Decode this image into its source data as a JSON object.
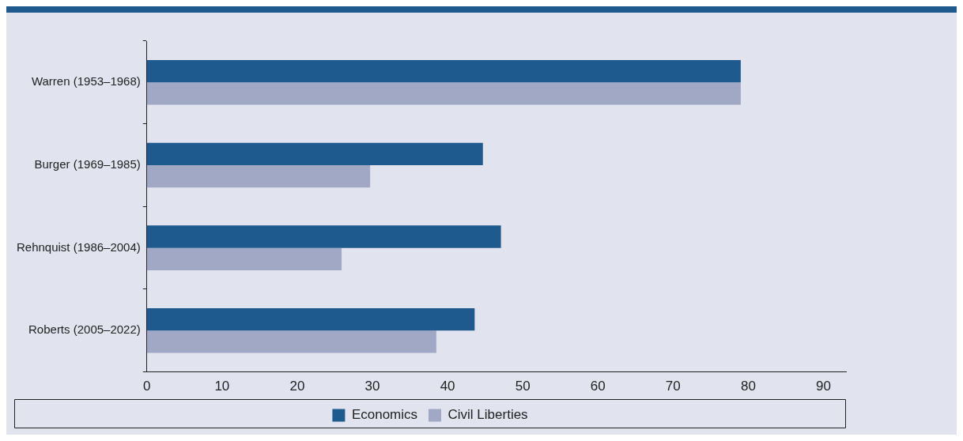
{
  "chart_data": {
    "type": "bar",
    "orientation": "horizontal",
    "categories": [
      "Warren (1953–1968)",
      "Burger (1969–1985)",
      "Rehnquist (1986–2004)",
      "Roberts (2005–2022)"
    ],
    "series": [
      {
        "name": "Economics",
        "color": "#1f5a8e",
        "values": [
          79,
          44.7,
          47.1,
          43.6
        ]
      },
      {
        "name": "Civil Liberties",
        "color": "#a0a8c6",
        "values": [
          79,
          29.7,
          25.9,
          38.5
        ]
      }
    ],
    "xlim": [
      0,
      93
    ],
    "xticks": [
      0,
      10,
      20,
      30,
      40,
      50,
      60,
      70,
      80,
      90
    ],
    "grid": false,
    "legend": "bottom"
  }
}
